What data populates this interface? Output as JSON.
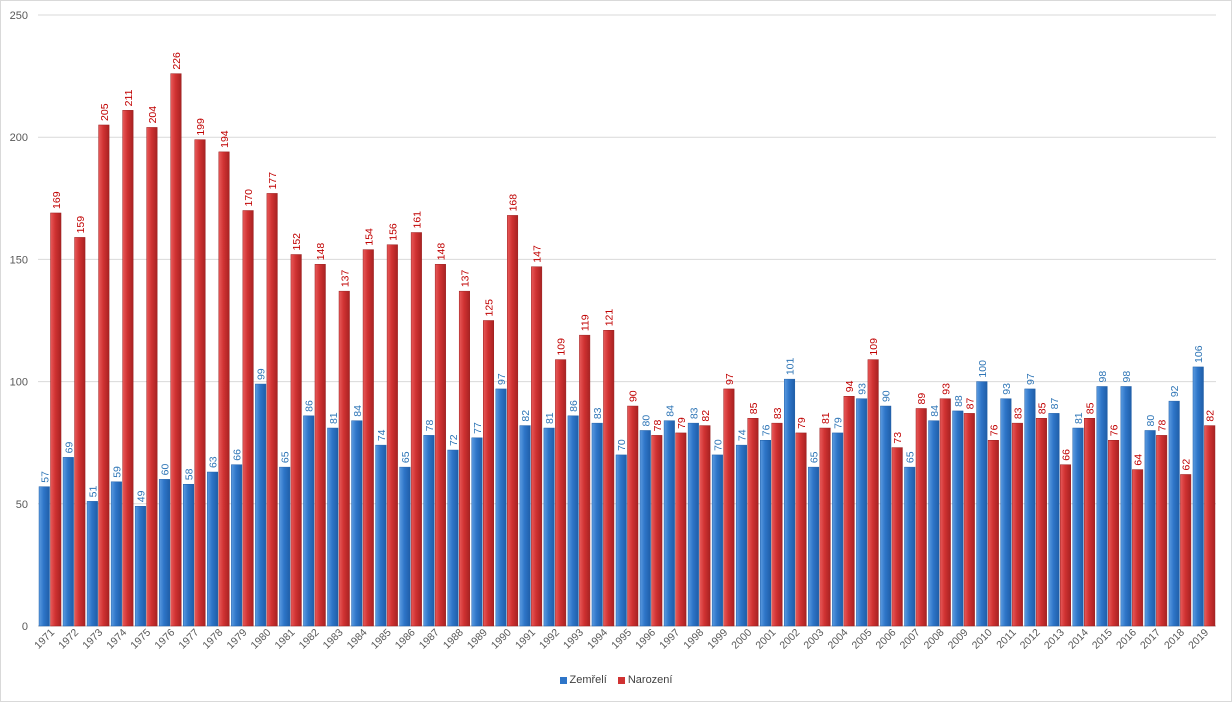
{
  "chart_data": {
    "type": "bar",
    "title": "",
    "xlabel": "",
    "ylabel": "",
    "ylim": [
      0,
      250
    ],
    "yticks": [
      0,
      50,
      100,
      150,
      200,
      250
    ],
    "grid": true,
    "legend_position": "bottom",
    "categories": [
      "1971",
      "1972",
      "1973",
      "1974",
      "1975",
      "1976",
      "1977",
      "1978",
      "1979",
      "1980",
      "1981",
      "1982",
      "1983",
      "1984",
      "1985",
      "1986",
      "1987",
      "1988",
      "1989",
      "1990",
      "1991",
      "1992",
      "1993",
      "1994",
      "1995",
      "1996",
      "1997",
      "1998",
      "1999",
      "2000",
      "2001",
      "2002",
      "2003",
      "2004",
      "2005",
      "2006",
      "2007",
      "2008",
      "2009",
      "2010",
      "2011",
      "2012",
      "2013",
      "2014",
      "2015",
      "2016",
      "2017",
      "2018",
      "2019"
    ],
    "series": [
      {
        "name": "Zemřelí",
        "color": "#2e75c8",
        "label_color": "#2e75b6",
        "values": [
          57,
          69,
          51,
          59,
          49,
          60,
          58,
          63,
          66,
          99,
          65,
          86,
          81,
          84,
          74,
          65,
          78,
          72,
          77,
          97,
          82,
          81,
          86,
          83,
          70,
          80,
          84,
          83,
          70,
          74,
          76,
          101,
          65,
          79,
          93,
          90,
          65,
          84,
          88,
          100,
          93,
          97,
          87,
          81,
          98,
          98,
          80,
          92,
          106
        ]
      },
      {
        "name": "Narození",
        "color": "#d03232",
        "label_color": "#c00000",
        "values": [
          169,
          159,
          205,
          211,
          204,
          226,
          199,
          194,
          170,
          177,
          152,
          148,
          137,
          154,
          156,
          161,
          148,
          137,
          125,
          168,
          147,
          109,
          119,
          121,
          90,
          78,
          79,
          82,
          97,
          85,
          83,
          79,
          81,
          94,
          109,
          73,
          89,
          93,
          87,
          76,
          83,
          85,
          66,
          85,
          76,
          64,
          78,
          62,
          82
        ]
      }
    ]
  }
}
